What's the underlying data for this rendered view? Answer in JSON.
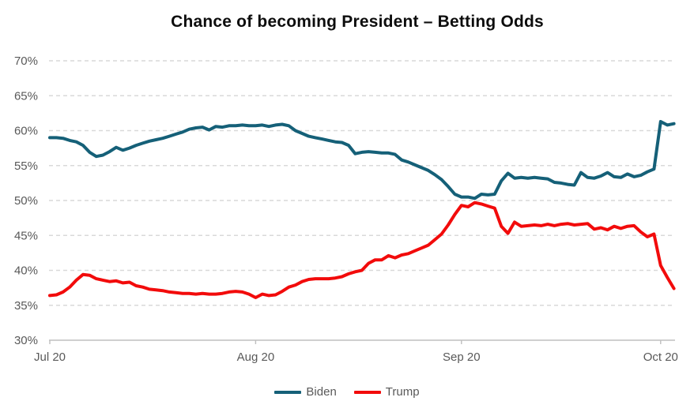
{
  "chart_data": {
    "type": "line",
    "title": "Chance of becoming President – Betting Odds",
    "xlabel": "",
    "ylabel": "",
    "ylim": [
      30,
      70
    ],
    "y_ticks": [
      30,
      35,
      40,
      45,
      50,
      55,
      60,
      65,
      70
    ],
    "y_tick_suffix": "%",
    "grid": "horizontal-dashed",
    "x_unit": "days since Jul 20",
    "x_total_days": 94,
    "x_ticks": [
      {
        "day": 0,
        "label": "Jul 20"
      },
      {
        "day": 31,
        "label": "Aug 20"
      },
      {
        "day": 62,
        "label": "Sep 20"
      },
      {
        "day": 92,
        "label": "Oct 20"
      }
    ],
    "legend_position": "bottom-center",
    "series": [
      {
        "name": "Biden",
        "color": "#156078",
        "values": [
          59.0,
          59.0,
          58.9,
          58.6,
          58.4,
          57.9,
          56.9,
          56.3,
          56.5,
          57.0,
          57.6,
          57.2,
          57.5,
          57.9,
          58.2,
          58.5,
          58.7,
          58.9,
          59.2,
          59.5,
          59.8,
          60.2,
          60.4,
          60.5,
          60.1,
          60.6,
          60.5,
          60.7,
          60.7,
          60.8,
          60.7,
          60.7,
          60.8,
          60.6,
          60.8,
          60.9,
          60.7,
          60.0,
          59.6,
          59.2,
          59.0,
          58.8,
          58.6,
          58.4,
          58.3,
          57.9,
          56.7,
          56.9,
          57.0,
          56.9,
          56.8,
          56.8,
          56.6,
          55.8,
          55.5,
          55.1,
          54.7,
          54.3,
          53.7,
          53.0,
          52.0,
          50.9,
          50.5,
          50.5,
          50.3,
          50.9,
          50.8,
          50.9,
          52.8,
          53.9,
          53.2,
          53.3,
          53.2,
          53.3,
          53.2,
          53.1,
          52.6,
          52.5,
          52.3,
          52.2,
          54.0,
          53.3,
          53.2,
          53.5,
          54.0,
          53.4,
          53.3,
          53.8,
          53.4,
          53.6,
          54.1,
          54.5,
          61.3,
          60.8,
          61.0
        ]
      },
      {
        "name": "Trump",
        "color": "#F20B0B",
        "values": [
          36.4,
          36.5,
          36.9,
          37.6,
          38.6,
          39.4,
          39.3,
          38.8,
          38.6,
          38.4,
          38.5,
          38.2,
          38.3,
          37.8,
          37.6,
          37.3,
          37.2,
          37.1,
          36.9,
          36.8,
          36.7,
          36.7,
          36.6,
          36.7,
          36.6,
          36.6,
          36.7,
          36.9,
          37.0,
          36.9,
          36.6,
          36.1,
          36.6,
          36.4,
          36.5,
          37.0,
          37.6,
          37.9,
          38.4,
          38.7,
          38.8,
          38.8,
          38.8,
          38.9,
          39.1,
          39.5,
          39.8,
          40.0,
          41.0,
          41.5,
          41.5,
          42.1,
          41.8,
          42.2,
          42.4,
          42.8,
          43.2,
          43.6,
          44.4,
          45.2,
          46.5,
          48.0,
          49.3,
          49.1,
          49.7,
          49.5,
          49.2,
          48.9,
          46.3,
          45.3,
          46.9,
          46.3,
          46.4,
          46.5,
          46.4,
          46.6,
          46.4,
          46.6,
          46.7,
          46.5,
          46.6,
          46.7,
          45.9,
          46.1,
          45.8,
          46.3,
          46.0,
          46.3,
          46.4,
          45.5,
          44.8,
          45.2,
          40.7,
          39.0,
          37.4
        ]
      }
    ]
  },
  "theme": {
    "background": "#FFFFFF",
    "title_color": "#0D0D0D",
    "gridline_color": "#D9D9D9",
    "axis_line_color": "#BFBFBF",
    "axis_label_color": "#595959",
    "legend_text_color": "#595959",
    "line_width": 4
  }
}
